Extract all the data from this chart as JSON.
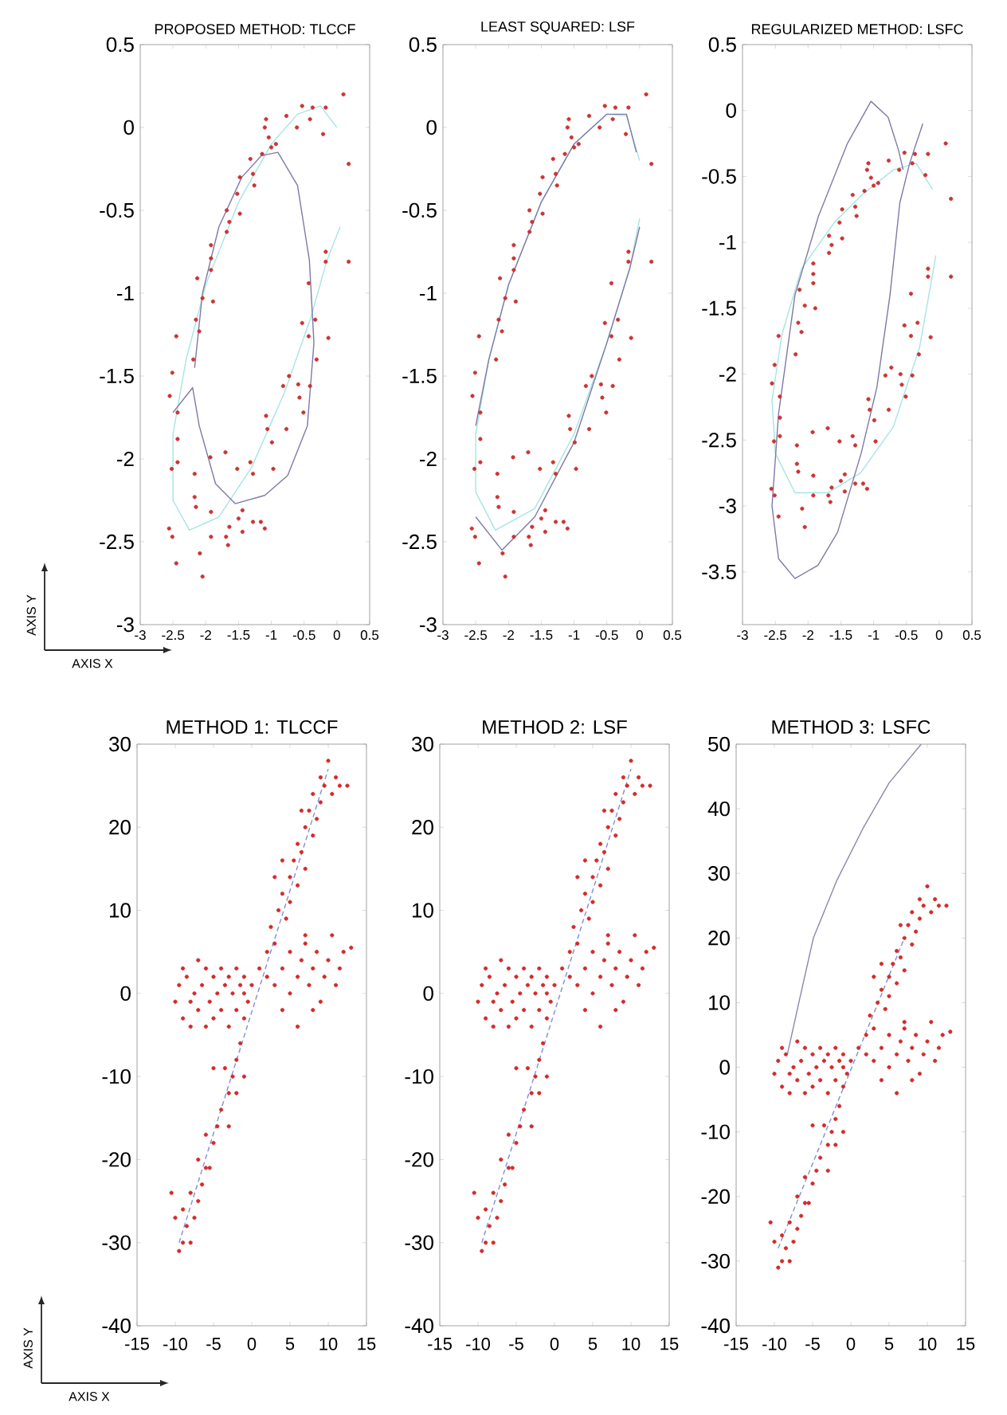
{
  "chart_data": [
    {
      "type": "scatter",
      "title": "PROPOSED METHOD: TLCCF",
      "xlabel": "AXIS X",
      "ylabel": "AXIS Y",
      "xlim": [
        -3,
        0.5
      ],
      "ylim": [
        -3,
        0.5
      ],
      "xticks": [
        -3,
        -2.5,
        -2,
        -1.5,
        -1,
        -0.5,
        0,
        0.5
      ],
      "yticks": [
        -3,
        -2.5,
        -2,
        -1.5,
        -1,
        -0.5,
        0,
        0.5
      ],
      "series": [
        {
          "marker": "circle",
          "color": "#cc3333",
          "x": [
            0.1,
            -0.53,
            -0.37,
            -0.17,
            -1.08,
            -0.77,
            -0.61,
            -0.41,
            -0.21,
            -1.1,
            -1.04,
            -1.0,
            -0.93,
            -1.14,
            -1.32,
            0.18,
            -1.28,
            -1.48,
            -1.26,
            -1.52,
            -1.68,
            -1.48,
            -1.64,
            -1.68,
            -1.92,
            -1.92,
            -1.92,
            -0.17,
            -0.17,
            0.18,
            -2.13,
            -1.89,
            -2.05,
            -2.15,
            -2.1,
            -2.45,
            -0.43,
            -0.53,
            -0.33,
            -0.43,
            -0.13,
            -2.19,
            -0.31,
            -2.51,
            -0.73,
            -0.59,
            -0.82,
            -0.41,
            -0.57,
            -2.55,
            -2.43,
            -0.51,
            -1.08,
            -1.06,
            -0.99,
            -0.77,
            -2.43,
            -2.43,
            -2.52,
            -2.17,
            -1.93,
            -1.7,
            -1.52,
            -1.32,
            -1.28,
            -0.97,
            -2.17,
            -2.15,
            -1.92,
            -2.56,
            -2.51,
            -1.44,
            -1.5,
            -1.28,
            -1.16,
            -1.1,
            -1.64,
            -1.69,
            -1.44,
            -1.92,
            -1.66,
            -2.09,
            -2.45,
            -2.05
          ],
          "values": [
            0.2,
            0.13,
            0.12,
            0.12,
            0.05,
            0.07,
            0.0,
            0.05,
            -0.04,
            0.0,
            -0.06,
            -0.12,
            -0.1,
            -0.16,
            -0.19,
            -0.22,
            -0.28,
            -0.3,
            -0.35,
            -0.4,
            -0.5,
            -0.52,
            -0.57,
            -0.63,
            -0.71,
            -0.79,
            -0.86,
            -0.75,
            -0.81,
            -0.81,
            -0.91,
            -1.05,
            -1.03,
            -1.16,
            -1.23,
            -1.26,
            -0.94,
            -1.18,
            -1.16,
            -1.26,
            -1.27,
            -1.4,
            -1.4,
            -1.48,
            -1.5,
            -1.55,
            -1.56,
            -1.56,
            -1.63,
            -1.62,
            -1.72,
            -1.72,
            -1.74,
            -1.82,
            -1.9,
            -1.82,
            -1.88,
            -2.02,
            -2.06,
            -2.09,
            -1.99,
            -1.96,
            -2.06,
            -2.02,
            -2.09,
            -2.06,
            -2.23,
            -2.29,
            -2.32,
            -2.42,
            -2.47,
            -2.31,
            -2.36,
            -2.38,
            -2.38,
            -2.42,
            -2.41,
            -2.47,
            -2.44,
            -2.47,
            -2.52,
            -2.57,
            -2.63,
            -2.71
          ]
        },
        {
          "type": "line",
          "marker": "none",
          "color": "#a6e4e6",
          "line_style": "solid",
          "x": [
            0.0,
            -0.25,
            -0.6,
            -1.0,
            -1.5,
            -2.0,
            -2.3,
            -2.5,
            -2.5,
            -2.25,
            -1.8,
            -1.3,
            -0.8,
            -0.4,
            -0.15,
            0.05
          ],
          "values": [
            0.0,
            0.13,
            0.08,
            -0.1,
            -0.45,
            -0.95,
            -1.4,
            -1.85,
            -2.25,
            -2.43,
            -2.35,
            -2.05,
            -1.6,
            -1.15,
            -0.8,
            -0.6
          ]
        },
        {
          "type": "line",
          "marker": "none",
          "color": "#7e7aa6",
          "line_style": "solid",
          "x": [
            -2.17,
            -2.05,
            -1.8,
            -1.45,
            -1.15,
            -0.9,
            -0.6,
            -0.42,
            -0.35,
            -0.45,
            -0.75,
            -1.1,
            -1.55,
            -1.85,
            -2.1,
            -2.2,
            -2.5
          ],
          "values": [
            -1.45,
            -1.0,
            -0.6,
            -0.3,
            -0.17,
            -0.15,
            -0.35,
            -0.8,
            -1.3,
            -1.8,
            -2.1,
            -2.22,
            -2.27,
            -2.15,
            -1.8,
            -1.57,
            -1.72
          ]
        }
      ]
    },
    {
      "type": "scatter",
      "title": "LEAST SQUARED: LSF",
      "xlim": [
        -3,
        0.5
      ],
      "ylim": [
        -3,
        0.5
      ],
      "xticks": [
        -3,
        -2.5,
        -2,
        -1.5,
        -1,
        -0.5,
        0,
        0.5
      ],
      "yticks": [
        -3,
        -2.5,
        -2,
        -1.5,
        -1,
        -0.5,
        0,
        0.5
      ],
      "series": [
        {
          "marker": "circle",
          "color": "#cc3333",
          "x": [
            0.1,
            -0.53,
            -0.37,
            -0.17,
            -1.08,
            -0.77,
            -0.61,
            -0.41,
            -0.21,
            -1.1,
            -1.04,
            -1.0,
            -0.93,
            -1.14,
            -1.32,
            0.18,
            -1.28,
            -1.48,
            -1.26,
            -1.52,
            -1.68,
            -1.48,
            -1.64,
            -1.68,
            -1.92,
            -1.92,
            -1.92,
            -0.17,
            -0.17,
            0.18,
            -2.13,
            -1.89,
            -2.05,
            -2.15,
            -2.1,
            -2.45,
            -0.43,
            -0.53,
            -0.33,
            -0.43,
            -0.13,
            -2.19,
            -0.31,
            -2.51,
            -0.73,
            -0.59,
            -0.82,
            -0.41,
            -0.57,
            -2.55,
            -2.43,
            -0.51,
            -1.08,
            -1.06,
            -0.99,
            -0.77,
            -2.43,
            -2.43,
            -2.52,
            -2.17,
            -1.93,
            -1.7,
            -1.52,
            -1.32,
            -1.28,
            -0.97,
            -2.17,
            -2.15,
            -1.92,
            -2.56,
            -2.51,
            -1.44,
            -1.5,
            -1.28,
            -1.16,
            -1.1,
            -1.64,
            -1.69,
            -1.44,
            -1.92,
            -1.66,
            -2.09,
            -2.45,
            -2.05
          ],
          "values": [
            0.2,
            0.13,
            0.12,
            0.12,
            0.05,
            0.07,
            0.0,
            0.05,
            -0.04,
            0.0,
            -0.06,
            -0.12,
            -0.1,
            -0.16,
            -0.19,
            -0.22,
            -0.28,
            -0.3,
            -0.35,
            -0.4,
            -0.5,
            -0.52,
            -0.57,
            -0.63,
            -0.71,
            -0.79,
            -0.86,
            -0.75,
            -0.81,
            -0.81,
            -0.91,
            -1.05,
            -1.03,
            -1.16,
            -1.23,
            -1.26,
            -0.94,
            -1.18,
            -1.16,
            -1.26,
            -1.27,
            -1.4,
            -1.4,
            -1.48,
            -1.5,
            -1.55,
            -1.56,
            -1.56,
            -1.63,
            -1.62,
            -1.72,
            -1.72,
            -1.74,
            -1.82,
            -1.9,
            -1.82,
            -1.88,
            -2.02,
            -2.06,
            -2.09,
            -1.99,
            -1.96,
            -2.06,
            -2.02,
            -2.09,
            -2.06,
            -2.23,
            -2.29,
            -2.32,
            -2.42,
            -2.47,
            -2.31,
            -2.36,
            -2.38,
            -2.38,
            -2.42,
            -2.41,
            -2.47,
            -2.44,
            -2.47,
            -2.52,
            -2.57,
            -2.63,
            -2.71
          ]
        },
        {
          "type": "line",
          "marker": "none",
          "color": "#a6e4e6",
          "line_style": "solid",
          "x": [
            0.0,
            -0.2,
            -0.5,
            -1.0,
            -1.5,
            -2.0,
            -2.3,
            -2.5,
            -2.5,
            -2.2,
            -1.6,
            -1.0,
            -0.5,
            -0.15,
            0.0
          ],
          "values": [
            -0.2,
            0.07,
            0.08,
            -0.1,
            -0.45,
            -0.95,
            -1.4,
            -1.85,
            -2.2,
            -2.43,
            -2.3,
            -1.85,
            -1.3,
            -0.85,
            -0.55
          ]
        },
        {
          "type": "line",
          "marker": "none",
          "color": "#7e7aa6",
          "line_style": "solid",
          "x": [
            -0.05,
            -0.2,
            -0.5,
            -1.0,
            -1.5,
            -2.0,
            -2.3,
            -2.5
          ],
          "values": [
            -0.15,
            0.08,
            0.08,
            -0.1,
            -0.45,
            -0.95,
            -1.4,
            -1.8
          ]
        },
        {
          "type": "line",
          "marker": "none",
          "color": "#7e7aa6",
          "line_style": "solid",
          "x": [
            -2.5,
            -2.1,
            -1.6,
            -1.0,
            -0.5,
            -0.15,
            0.0
          ],
          "values": [
            -2.35,
            -2.55,
            -2.35,
            -1.9,
            -1.3,
            -0.85,
            -0.6
          ]
        }
      ]
    },
    {
      "type": "scatter",
      "title": "REGULARIZED METHOD: LSFC",
      "xlim": [
        -3,
        0.5
      ],
      "ylim": [
        -3.9,
        0.5
      ],
      "xticks": [
        -3,
        -2.5,
        -2,
        -1.5,
        -1,
        -0.5,
        0,
        0.5
      ],
      "yticks": [
        -3.5,
        -3,
        -2.5,
        -2,
        -1.5,
        -1,
        -0.5,
        0,
        0.5
      ],
      "series": [
        {
          "marker": "circle",
          "color": "#cc3333",
          "x": [
            0.1,
            -0.53,
            -0.37,
            -0.17,
            -1.08,
            -0.77,
            -0.61,
            -0.41,
            -0.21,
            -1.1,
            -1.04,
            -1.0,
            -0.93,
            -1.14,
            -1.32,
            0.18,
            -1.28,
            -1.48,
            -1.26,
            -1.52,
            -1.68,
            -1.48,
            -1.64,
            -1.68,
            -1.92,
            -1.92,
            -1.92,
            -0.17,
            -0.17,
            0.18,
            -2.13,
            -1.89,
            -2.05,
            -2.15,
            -2.1,
            -2.45,
            -0.43,
            -0.53,
            -0.33,
            -0.43,
            -0.13,
            -2.19,
            -0.31,
            -2.51,
            -0.73,
            -0.59,
            -0.82,
            -0.41,
            -0.57,
            -2.55,
            -2.43,
            -0.51,
            -1.08,
            -1.06,
            -0.99,
            -0.77,
            -2.43,
            -2.43,
            -2.52,
            -2.17,
            -1.93,
            -1.7,
            -1.52,
            -1.32,
            -1.28,
            -0.97,
            -2.17,
            -2.15,
            -1.92,
            -2.56,
            -2.51,
            -1.44,
            -1.5,
            -1.28,
            -1.16,
            -1.1,
            -1.64,
            -1.69,
            -1.44,
            -1.92,
            -1.66,
            -2.09,
            -2.45,
            -2.05
          ],
          "values": [
            -0.25,
            -0.32,
            -0.33,
            -0.33,
            -0.4,
            -0.38,
            -0.45,
            -0.4,
            -0.49,
            -0.45,
            -0.51,
            -0.57,
            -0.55,
            -0.61,
            -0.64,
            -0.67,
            -0.73,
            -0.75,
            -0.8,
            -0.85,
            -0.95,
            -0.97,
            -1.02,
            -1.08,
            -1.16,
            -1.24,
            -1.31,
            -1.2,
            -1.26,
            -1.26,
            -1.36,
            -1.5,
            -1.48,
            -1.61,
            -1.68,
            -1.71,
            -1.39,
            -1.63,
            -1.61,
            -1.71,
            -1.72,
            -1.85,
            -1.85,
            -1.93,
            -1.95,
            -2.0,
            -2.01,
            -2.01,
            -2.08,
            -2.07,
            -2.17,
            -2.17,
            -2.19,
            -2.27,
            -2.35,
            -2.27,
            -2.33,
            -2.47,
            -2.51,
            -2.54,
            -2.44,
            -2.41,
            -2.51,
            -2.47,
            -2.54,
            -2.51,
            -2.68,
            -2.74,
            -2.77,
            -2.87,
            -2.92,
            -2.76,
            -2.81,
            -2.83,
            -2.83,
            -2.87,
            -2.86,
            -2.92,
            -2.89,
            -2.92,
            -2.97,
            -3.02,
            -3.08,
            -3.16
          ]
        },
        {
          "type": "line",
          "marker": "none",
          "color": "#a6e4e6",
          "line_style": "solid",
          "x": [
            -0.05,
            -0.3,
            -0.7,
            -1.2,
            -1.7,
            -2.2,
            -2.5,
            -2.55,
            -2.4,
            -2.1,
            -1.6,
            -1.2,
            -0.7,
            -0.35,
            -0.1
          ],
          "values": [
            -1.1,
            -1.8,
            -2.4,
            -2.75,
            -2.9,
            -2.9,
            -2.6,
            -2.2,
            -1.7,
            -1.2,
            -0.85,
            -0.65,
            -0.45,
            -0.4,
            -0.6
          ]
        },
        {
          "type": "line",
          "marker": "none",
          "color": "#7e7aa6",
          "line_style": "solid",
          "x": [
            -0.25,
            -0.45,
            -0.6,
            -0.75,
            -0.95,
            -1.19,
            -1.55,
            -1.85,
            -2.2,
            -2.45,
            -2.55,
            -2.45,
            -2.2,
            -1.84,
            -1.4,
            -1.04,
            -0.78,
            -0.62,
            -0.55
          ],
          "values": [
            -0.1,
            -0.4,
            -0.7,
            -1.4,
            -2.1,
            -2.6,
            -3.2,
            -3.45,
            -3.55,
            -3.4,
            -3.0,
            -2.3,
            -1.4,
            -0.8,
            -0.25,
            0.07,
            -0.05,
            -0.3,
            -0.45
          ]
        }
      ]
    },
    {
      "type": "scatter",
      "title": "METHOD 1: TLCCF",
      "xlabel": "AXIS X",
      "ylabel": "AXIS Y",
      "xlim": [
        -15,
        15
      ],
      "ylim": [
        -40,
        30
      ],
      "xticks": [
        -15,
        -10,
        -5,
        0,
        5,
        10,
        15
      ],
      "yticks": [
        -40,
        -30,
        -20,
        -10,
        0,
        10,
        20,
        30
      ],
      "series": [
        {
          "marker": "circle",
          "color": "#d42a2a",
          "x": [
            1,
            2,
            2.5,
            3,
            3.5,
            4,
            4.5,
            5,
            5,
            5.5,
            6,
            6,
            6.5,
            7,
            7,
            7.5,
            8,
            8,
            8.5,
            9,
            9,
            9.5,
            10,
            10.5,
            11,
            11.5,
            12.5,
            4,
            3,
            6.5,
            2,
            3,
            4,
            5,
            5,
            6,
            6.5,
            7,
            7.5,
            8,
            8.5,
            9,
            9.5,
            10,
            10.5,
            11,
            11.5,
            12,
            13,
            6,
            8,
            4,
            7,
            -10,
            -9.5,
            -9,
            -8.5,
            -8,
            -7.5,
            -7,
            -7,
            -6.5,
            -6,
            -6,
            -5.5,
            -5,
            -5,
            -4.5,
            -4,
            -4,
            -3.5,
            -3,
            -3,
            -2.5,
            -2,
            -2,
            -1.5,
            -1,
            -1,
            -0.5,
            0,
            -8,
            -9,
            -1,
            -1.5,
            -2,
            -2.5,
            -1,
            -3,
            -3.5,
            -4,
            -4.5,
            -3,
            -5,
            -5.5,
            -6,
            -6,
            -6.5,
            -7,
            -7,
            -7.5,
            -8,
            -8.5,
            -9,
            -9,
            -9.5,
            -10,
            -10.5,
            -8,
            -2,
            -5
          ],
          "values": [
            3,
            5,
            8,
            6,
            10,
            12,
            9,
            14,
            11,
            16,
            13,
            18,
            17,
            20,
            15,
            22,
            19,
            24,
            21,
            26,
            23,
            25,
            28,
            24,
            26,
            25,
            25,
            16,
            14,
            22,
            2,
            1,
            3,
            5,
            0,
            2,
            4,
            6,
            1,
            3,
            5,
            -1,
            2,
            4,
            7,
            1,
            3,
            5,
            5.5,
            -4,
            -2,
            -2,
            7,
            -1,
            1,
            -3,
            2,
            -1,
            0,
            4,
            -2,
            1,
            -4,
            3,
            -1,
            2,
            -3,
            0,
            3,
            -2,
            1,
            -4,
            2,
            0,
            -2,
            3,
            1,
            0,
            2,
            -1,
            1,
            -4,
            3,
            -3,
            -6,
            -8,
            -10,
            -10,
            -12,
            -9,
            -14,
            -16,
            -16,
            -18,
            -21,
            -17,
            -21,
            -23,
            -20,
            -25,
            -27,
            -24,
            -28,
            -30,
            -26,
            -31,
            -27,
            -24,
            -30,
            -12,
            -9
          ]
        },
        {
          "type": "line",
          "marker": "none",
          "color": "#7f8fd8",
          "line_style": "dashed",
          "x": [
            -9.5,
            10
          ],
          "values": [
            -30,
            27
          ]
        }
      ]
    },
    {
      "type": "scatter",
      "title": "METHOD 2: LSF",
      "xlim": [
        -15,
        15
      ],
      "ylim": [
        -40,
        30
      ],
      "xticks": [
        -15,
        -10,
        -5,
        0,
        5,
        10,
        15
      ],
      "yticks": [
        -40,
        -30,
        -20,
        -10,
        0,
        10,
        20,
        30
      ],
      "series": [
        {
          "marker": "circle",
          "color": "#d42a2a",
          "x": [
            1,
            2,
            2.5,
            3,
            3.5,
            4,
            4.5,
            5,
            5,
            5.5,
            6,
            6,
            6.5,
            7,
            7,
            7.5,
            8,
            8,
            8.5,
            9,
            9,
            9.5,
            10,
            10.5,
            11,
            11.5,
            12.5,
            4,
            3,
            6.5,
            2,
            3,
            4,
            5,
            5,
            6,
            6.5,
            7,
            7.5,
            8,
            8.5,
            9,
            9.5,
            10,
            10.5,
            11,
            11.5,
            12,
            13,
            6,
            8,
            4,
            7,
            -10,
            -9.5,
            -9,
            -8.5,
            -8,
            -7.5,
            -7,
            -7,
            -6.5,
            -6,
            -6,
            -5.5,
            -5,
            -5,
            -4.5,
            -4,
            -4,
            -3.5,
            -3,
            -3,
            -2.5,
            -2,
            -2,
            -1.5,
            -1,
            -1,
            -0.5,
            0,
            -8,
            -9,
            -1,
            -1.5,
            -2,
            -2.5,
            -1,
            -3,
            -3.5,
            -4,
            -4.5,
            -3,
            -5,
            -5.5,
            -6,
            -6,
            -6.5,
            -7,
            -7,
            -7.5,
            -8,
            -8.5,
            -9,
            -9,
            -9.5,
            -10,
            -10.5,
            -8,
            -2,
            -5
          ],
          "values": [
            3,
            5,
            8,
            6,
            10,
            12,
            9,
            14,
            11,
            16,
            13,
            18,
            17,
            20,
            15,
            22,
            19,
            24,
            21,
            26,
            23,
            25,
            28,
            24,
            26,
            25,
            25,
            16,
            14,
            22,
            2,
            1,
            3,
            5,
            0,
            2,
            4,
            6,
            1,
            3,
            5,
            -1,
            2,
            4,
            7,
            1,
            3,
            5,
            5.5,
            -4,
            -2,
            -2,
            7,
            -1,
            1,
            -3,
            2,
            -1,
            0,
            4,
            -2,
            1,
            -4,
            3,
            -1,
            2,
            -3,
            0,
            3,
            -2,
            1,
            -4,
            2,
            0,
            -2,
            3,
            1,
            0,
            2,
            -1,
            1,
            -4,
            3,
            -3,
            -6,
            -8,
            -10,
            -10,
            -12,
            -9,
            -14,
            -16,
            -16,
            -18,
            -21,
            -17,
            -21,
            -23,
            -20,
            -25,
            -27,
            -24,
            -28,
            -30,
            -26,
            -31,
            -27,
            -24,
            -30,
            -12,
            -9
          ]
        },
        {
          "type": "line",
          "marker": "none",
          "color": "#7f8fd8",
          "line_style": "dashed",
          "x": [
            -9.5,
            10
          ],
          "values": [
            -30,
            27
          ]
        }
      ]
    },
    {
      "type": "scatter",
      "title": "METHOD 3: LSFC",
      "xlim": [
        -15,
        15
      ],
      "ylim": [
        -40,
        50
      ],
      "xticks": [
        -15,
        -10,
        -5,
        0,
        5,
        10,
        15
      ],
      "yticks": [
        -40,
        -30,
        -20,
        -10,
        0,
        10,
        20,
        30,
        40,
        50
      ],
      "series": [
        {
          "marker": "circle",
          "color": "#d42a2a",
          "x": [
            1,
            2,
            2.5,
            3,
            3.5,
            4,
            4.5,
            5,
            5,
            5.5,
            6,
            6,
            6.5,
            7,
            7,
            7.5,
            8,
            8,
            8.5,
            9,
            9,
            9.5,
            10,
            10.5,
            11,
            11.5,
            12.5,
            4,
            3,
            6.5,
            2,
            3,
            4,
            5,
            5,
            6,
            6.5,
            7,
            7.5,
            8,
            8.5,
            9,
            9.5,
            10,
            10.5,
            11,
            11.5,
            12,
            13,
            6,
            8,
            4,
            7,
            -10,
            -9.5,
            -9,
            -8.5,
            -8,
            -7.5,
            -7,
            -7,
            -6.5,
            -6,
            -6,
            -5.5,
            -5,
            -5,
            -4.5,
            -4,
            -4,
            -3.5,
            -3,
            -3,
            -2.5,
            -2,
            -2,
            -1.5,
            -1,
            -1,
            -0.5,
            0,
            -8,
            -9,
            -1,
            -1.5,
            -2,
            -2.5,
            -1,
            -3,
            -3.5,
            -4,
            -4.5,
            -3,
            -5,
            -5.5,
            -6,
            -6,
            -6.5,
            -7,
            -7,
            -7.5,
            -8,
            -8.5,
            -9,
            -9,
            -9.5,
            -10,
            -10.5,
            -8,
            -2,
            -5
          ],
          "values": [
            3,
            5,
            8,
            6,
            10,
            12,
            9,
            14,
            11,
            16,
            13,
            18,
            17,
            20,
            15,
            22,
            19,
            24,
            21,
            26,
            23,
            25,
            28,
            24,
            26,
            25,
            25,
            16,
            14,
            22,
            2,
            1,
            3,
            5,
            0,
            2,
            4,
            6,
            1,
            3,
            5,
            -1,
            2,
            4,
            7,
            1,
            3,
            5,
            5.5,
            -4,
            -2,
            -2,
            7,
            -1,
            1,
            -3,
            2,
            -1,
            0,
            4,
            -2,
            1,
            -4,
            3,
            -1,
            2,
            -3,
            0,
            3,
            -2,
            1,
            -4,
            2,
            0,
            -2,
            3,
            1,
            0,
            2,
            -1,
            1,
            -4,
            3,
            -3,
            -6,
            -8,
            -10,
            -10,
            -12,
            -9,
            -14,
            -16,
            -16,
            -18,
            -21,
            -17,
            -21,
            -23,
            -20,
            -25,
            -27,
            -24,
            -28,
            -30,
            -26,
            -31,
            -27,
            -24,
            -30,
            -12,
            -9
          ]
        },
        {
          "type": "line",
          "marker": "none",
          "color": "#7f8fd8",
          "line_style": "dashed",
          "x": [
            -9.5,
            7
          ],
          "values": [
            -28,
            20
          ]
        },
        {
          "type": "line",
          "marker": "none",
          "color": "#8a88aa",
          "line_style": "solid",
          "x": [
            -8.3,
            -6.8,
            -4.9,
            -1.8,
            1.6,
            5,
            9.2
          ],
          "values": [
            2,
            10,
            20,
            29,
            37,
            44,
            50
          ]
        }
      ]
    }
  ]
}
